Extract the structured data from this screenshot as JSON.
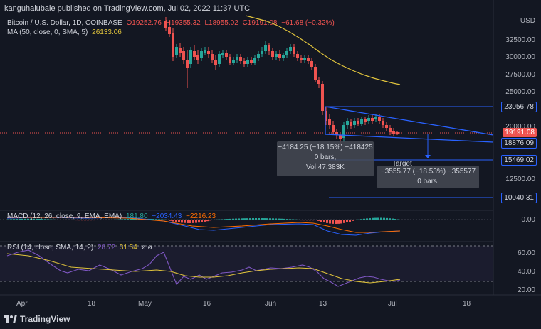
{
  "header": "kanguhalubale published on TradingView.com, Jul 02, 2022 11:37 UTC",
  "main_legend": {
    "symbol": "Bitcoin / U.S. Dollar, 1D, COINBASE",
    "o": "O19252.76",
    "h": "H19355.32",
    "l": "L18955.02",
    "c": "C19191.08",
    "chg": "−61.68 (−0.32%)"
  },
  "ma_legend": {
    "label": "MA (50, close, 0, SMA, 5)",
    "value": "26133.06"
  },
  "currency": "USD",
  "price_axis": [
    "32500.00",
    "30000.00",
    "27500.00",
    "25000.00",
    "22500.00",
    "20000.00",
    "17500.00",
    "12500.00"
  ],
  "price_tags": {
    "resistance": "23056.78",
    "current": "19191.08",
    "line": "18876.09",
    "support": "15469.02",
    "target": "10040.31"
  },
  "measure_box1": {
    "line1": "−4184.25 (−18.15%) −418425",
    "line2": "0 bars,",
    "line3": "Vol 47.383K"
  },
  "measure_box2": {
    "title": "Target",
    "line1": "−3555.77 (−18.53%) −355577",
    "line2": "0 bars,"
  },
  "macd_legend": {
    "label": "MACD (12, 26, close, 9, EMA, EMA)",
    "hist": "181.80",
    "macd": "−2034.43",
    "signal": "−2216.23"
  },
  "macd_axis": [
    "0.00"
  ],
  "rsi_legend": {
    "label": "RSI (14, close, SMA, 14, 2)",
    "rsi": "28.72",
    "sma": "31.54",
    "extra": "ø ø"
  },
  "rsi_axis": [
    "60.00",
    "40.00",
    "20.00"
  ],
  "time_axis": [
    "Apr",
    "18",
    "May",
    "16",
    "Jun",
    "13",
    "Jul",
    "18"
  ],
  "footer": "TradingView",
  "colors": {
    "bg": "#131722",
    "up": "#26a69a",
    "down": "#ef5350",
    "ma": "#e0c33c",
    "blue": "#2962ff",
    "rsi": "#7e57c2"
  }
}
